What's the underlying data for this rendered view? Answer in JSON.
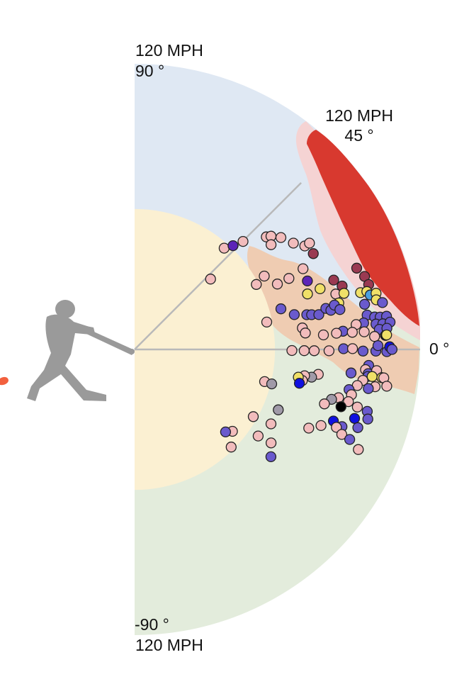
{
  "chart_data": {
    "type": "scatter",
    "coordinate_system": "polar",
    "title": "",
    "r_range": [
      0,
      120
    ],
    "r_unit": "MPH",
    "theta_range": [
      -90,
      90
    ],
    "theta_unit": "°",
    "grid": false,
    "legend": "none",
    "annotations": {
      "top_speed": "120 MPH",
      "top_angle": "90 °",
      "mid_speed": "120 MPH",
      "mid_angle": "45 °",
      "zero_angle": "0 °",
      "bottom_angle": "-90 °",
      "bottom_speed": "120 MPH"
    },
    "zones": [
      {
        "name": "popup",
        "color": "#dfe8f3",
        "theta_min": 10,
        "theta_max": 90,
        "r_min": 0,
        "r_max": 120
      },
      {
        "name": "ground",
        "color": "#e3ecdc",
        "theta_min": -90,
        "theta_max": 10,
        "r_min": 0,
        "r_max": 120
      },
      {
        "name": "weak",
        "color": "#fbf0d2",
        "theta_min": -90,
        "theta_max": 90,
        "r_min": 0,
        "r_max": 59
      },
      {
        "name": "solid",
        "color": "#efccb2"
      },
      {
        "name": "flare",
        "color": "#f5d3d3"
      },
      {
        "name": "barrel",
        "color": "#d8392f"
      }
    ],
    "axis_rays_deg": [
      45,
      0
    ],
    "category_colors": {
      "out": "#f2bcbc",
      "single": "#6a5acd",
      "double": "#f0e068",
      "triple": "#4a9fe0",
      "home_run": "#000000",
      "error": "#1010e0",
      "sacrifice": "#5c24b8",
      "barrel_out": "#9a3a52",
      "gray": "#a09aa8"
    },
    "points": [
      {
        "ev": 43.5,
        "la": 42.8,
        "c": "out"
      },
      {
        "ev": 56.8,
        "la": 48.5,
        "c": "out"
      },
      {
        "ev": 60.1,
        "la": 46.5,
        "c": "sacrifice"
      },
      {
        "ev": 64.3,
        "la": 44.9,
        "c": "out"
      },
      {
        "ev": 72.8,
        "la": 40.5,
        "c": "out"
      },
      {
        "ev": 74.5,
        "la": 39.7,
        "c": "out"
      },
      {
        "ev": 72.3,
        "la": 37.5,
        "c": "out"
      },
      {
        "ev": 77.4,
        "la": 37.4,
        "c": "out"
      },
      {
        "ev": 80.3,
        "la": 33.8,
        "c": "out"
      },
      {
        "ev": 83.7,
        "la": 31.3,
        "c": "out"
      },
      {
        "ev": 86.0,
        "la": 31.3,
        "c": "out"
      },
      {
        "ev": 85.2,
        "la": 28.2,
        "c": "barrel_out"
      },
      {
        "ev": 62.6,
        "la": 29.5,
        "c": "out"
      },
      {
        "ev": 58.0,
        "la": 28.1,
        "c": "out"
      },
      {
        "ev": 66.0,
        "la": 24.6,
        "c": "out"
      },
      {
        "ev": 71.4,
        "la": 24.7,
        "c": "out"
      },
      {
        "ev": 78.5,
        "la": 25.6,
        "c": "out"
      },
      {
        "ev": 78.1,
        "la": 21.6,
        "c": "sacrifice"
      },
      {
        "ev": 76.3,
        "la": 17.8,
        "c": "double"
      },
      {
        "ev": 82.0,
        "la": 18.1,
        "c": "double"
      },
      {
        "ev": 88.6,
        "la": 19.2,
        "c": "barrel_out"
      },
      {
        "ev": 91.2,
        "la": 17.0,
        "c": "barrel_out"
      },
      {
        "ev": 87.7,
        "la": 15.4,
        "c": "out"
      },
      {
        "ev": 91.1,
        "la": 15.0,
        "c": "double"
      },
      {
        "ev": 99.4,
        "la": 20.1,
        "c": "barrel_out"
      },
      {
        "ev": 101.4,
        "la": 17.6,
        "c": "barrel_out"
      },
      {
        "ev": 102.1,
        "la": 15.5,
        "c": "barrel_out"
      },
      {
        "ev": 97.9,
        "la": 14.1,
        "c": "double"
      },
      {
        "ev": 100.6,
        "la": 14.0,
        "c": "double"
      },
      {
        "ev": 101.6,
        "la": 13.0,
        "c": "triple"
      },
      {
        "ev": 104.2,
        "la": 13.1,
        "c": "double"
      },
      {
        "ev": 103.7,
        "la": 11.6,
        "c": "double"
      },
      {
        "ev": 88.0,
        "la": 12.8,
        "c": "double"
      },
      {
        "ev": 63.8,
        "la": 15.5,
        "c": "single"
      },
      {
        "ev": 68.7,
        "la": 12.3,
        "c": "single"
      },
      {
        "ev": 56.7,
        "la": 11.7,
        "c": "out"
      },
      {
        "ev": 73.8,
        "la": 11.4,
        "c": "single"
      },
      {
        "ev": 75.8,
        "la": 11.1,
        "c": "single"
      },
      {
        "ev": 78.8,
        "la": 10.7,
        "c": "single"
      },
      {
        "ev": 82.2,
        "la": 12.1,
        "c": "single"
      },
      {
        "ev": 84.1,
        "la": 11.3,
        "c": "single"
      },
      {
        "ev": 86.0,
        "la": 12.5,
        "c": "single"
      },
      {
        "ev": 87.9,
        "la": 11.0,
        "c": "single"
      },
      {
        "ev": 98.5,
        "la": 11.1,
        "c": "single"
      },
      {
        "ev": 106.0,
        "la": 10.7,
        "c": "single"
      },
      {
        "ev": 98.8,
        "la": 8.4,
        "c": "single"
      },
      {
        "ev": 101.8,
        "la": 7.7,
        "c": "single"
      },
      {
        "ev": 104.1,
        "la": 7.5,
        "c": "single"
      },
      {
        "ev": 106.8,
        "la": 7.5,
        "c": "single"
      },
      {
        "ev": 96.9,
        "la": 6.6,
        "c": "single"
      },
      {
        "ev": 102.0,
        "la": 6.0,
        "c": "single"
      },
      {
        "ev": 104.9,
        "la": 5.9,
        "c": "single"
      },
      {
        "ev": 108.0,
        "la": 6.1,
        "c": "single"
      },
      {
        "ev": 103.2,
        "la": 4.7,
        "c": "single"
      },
      {
        "ev": 106.4,
        "la": 4.8,
        "c": "single"
      },
      {
        "ev": 93.7,
        "la": 6.4,
        "c": "out"
      },
      {
        "ev": 87.9,
        "la": 5.0,
        "c": "single"
      },
      {
        "ev": 71.1,
        "la": 7.3,
        "c": "out"
      },
      {
        "ev": 72.1,
        "la": 5.5,
        "c": "out"
      },
      {
        "ev": 79.6,
        "la": 4.4,
        "c": "out"
      },
      {
        "ev": 85.1,
        "la": 4.6,
        "c": "out"
      },
      {
        "ev": 91.8,
        "la": 4.5,
        "c": "out"
      },
      {
        "ev": 96.8,
        "la": 4.4,
        "c": "out"
      },
      {
        "ev": 101.0,
        "la": 3.1,
        "c": "out"
      },
      {
        "ev": 105.6,
        "la": 3.2,
        "c": "home_run"
      },
      {
        "ev": 106.1,
        "la": 3.3,
        "c": "double"
      },
      {
        "ev": 66.1,
        "la": -0.4,
        "c": "out"
      },
      {
        "ev": 71.3,
        "la": -0.4,
        "c": "out"
      },
      {
        "ev": 75.5,
        "la": -0.4,
        "c": "out"
      },
      {
        "ev": 81.7,
        "la": -0.4,
        "c": "out"
      },
      {
        "ev": 87.8,
        "la": 0.2,
        "c": "single"
      },
      {
        "ev": 91.6,
        "la": 0.2,
        "c": "out"
      },
      {
        "ev": 96.0,
        "la": -0.4,
        "c": "single"
      },
      {
        "ev": 101.4,
        "la": -0.4,
        "c": "single"
      },
      {
        "ev": 102.3,
        "la": 0.9,
        "c": "single"
      },
      {
        "ev": 106.0,
        "la": -0.5,
        "c": "single"
      },
      {
        "ev": 107.2,
        "la": 0.6,
        "c": "error"
      },
      {
        "ev": 108.2,
        "la": 0.0,
        "c": "single"
      },
      {
        "ev": 98.6,
        "la": -3.9,
        "c": "single"
      },
      {
        "ev": 97.4,
        "la": -5.0,
        "c": "out"
      },
      {
        "ev": 98.7,
        "la": -5.9,
        "c": "single"
      },
      {
        "ev": 98.7,
        "la": -6.6,
        "c": "single"
      },
      {
        "ev": 96.8,
        "la": -7.7,
        "c": "out"
      },
      {
        "ev": 102.1,
        "la": -5.0,
        "c": "out"
      },
      {
        "ev": 100.5,
        "la": -6.5,
        "c": "double"
      },
      {
        "ev": 104.6,
        "la": -6.5,
        "c": "double"
      },
      {
        "ev": 105.4,
        "la": -6.5,
        "c": "out"
      },
      {
        "ev": 107.1,
        "la": -8.3,
        "c": "out"
      },
      {
        "ev": 91.5,
        "la": -6.2,
        "c": "single"
      },
      {
        "ev": 102.3,
        "la": -8.8,
        "c": "out"
      },
      {
        "ev": 99.6,
        "la": -9.5,
        "c": "single"
      },
      {
        "ev": 94.8,
        "la": -9.2,
        "c": "out"
      },
      {
        "ev": 77.9,
        "la": -7.7,
        "c": "out"
      },
      {
        "ev": 75.3,
        "la": -8.9,
        "c": "gray"
      },
      {
        "ev": 72.3,
        "la": -8.8,
        "c": "out"
      },
      {
        "ev": 71.7,
        "la": -10.5,
        "c": "out"
      },
      {
        "ev": 69.8,
        "la": -9.6,
        "c": "double"
      },
      {
        "ev": 70.7,
        "la": -11.6,
        "c": "error"
      },
      {
        "ev": 56.3,
        "la": -13.9,
        "c": "out"
      },
      {
        "ev": 59.4,
        "la": -14.1,
        "c": "gray"
      },
      {
        "ev": 91.7,
        "la": -10.6,
        "c": "single"
      },
      {
        "ev": 93.1,
        "la": -11.8,
        "c": "out"
      },
      {
        "ev": 92.5,
        "la": -13.7,
        "c": "out"
      },
      {
        "ev": 88.1,
        "la": -13.3,
        "c": "out"
      },
      {
        "ev": 85.4,
        "la": -14.2,
        "c": "gray"
      },
      {
        "ev": 90.0,
        "la": -15.5,
        "c": "home_run"
      },
      {
        "ev": 83.0,
        "la": -16.0,
        "c": "out"
      },
      {
        "ev": 96.7,
        "la": -14.5,
        "c": "out"
      },
      {
        "ev": 101.2,
        "la": -14.9,
        "c": "single"
      },
      {
        "ev": 102.3,
        "la": -16.6,
        "c": "single"
      },
      {
        "ev": 96.9,
        "la": -17.4,
        "c": "error"
      },
      {
        "ev": 88.8,
        "la": -19.8,
        "c": "error"
      },
      {
        "ev": 99.4,
        "la": -19.3,
        "c": "single"
      },
      {
        "ev": 93.0,
        "la": -20.4,
        "c": "single"
      },
      {
        "ev": 90.9,
        "la": -21.1,
        "c": "out"
      },
      {
        "ev": 94.1,
        "la": -22.3,
        "c": "out"
      },
      {
        "ev": 98.0,
        "la": -22.7,
        "c": "single"
      },
      {
        "ev": 103.0,
        "la": -24.1,
        "c": "out"
      },
      {
        "ev": 84.6,
        "la": -22.2,
        "c": "out"
      },
      {
        "ev": 80.3,
        "la": -24.3,
        "c": "out"
      },
      {
        "ev": 65.5,
        "la": -22.8,
        "c": "gray"
      },
      {
        "ev": 65.3,
        "la": -28.6,
        "c": "out"
      },
      {
        "ev": 69.5,
        "la": -34.4,
        "c": "out"
      },
      {
        "ev": 57.3,
        "la": -29.5,
        "c": "out"
      },
      {
        "ev": 63.4,
        "la": -35.0,
        "c": "out"
      },
      {
        "ev": 72.9,
        "la": -38.2,
        "c": "single"
      },
      {
        "ev": 53.6,
        "la": -39.9,
        "c": "out"
      },
      {
        "ev": 51.6,
        "la": -42.2,
        "c": "single"
      },
      {
        "ev": 57.7,
        "la": -45.3,
        "c": "out"
      }
    ]
  }
}
